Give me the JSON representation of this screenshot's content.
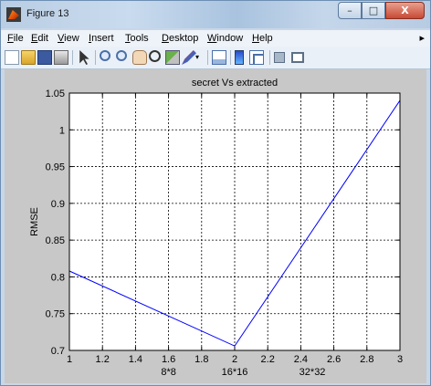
{
  "window": {
    "title": "Figure 13",
    "buttons": {
      "minimize": "–",
      "maximize": "□",
      "close": "X"
    }
  },
  "menubar": {
    "items": [
      {
        "label": "File",
        "underline": "F",
        "rest": "ile"
      },
      {
        "label": "Edit",
        "underline": "E",
        "rest": "dit"
      },
      {
        "label": "View",
        "underline": "V",
        "rest": "iew"
      },
      {
        "label": "Insert",
        "underline": "I",
        "rest": "nsert"
      },
      {
        "label": "Tools",
        "underline": "T",
        "rest": "ools"
      },
      {
        "label": "Desktop",
        "underline": "D",
        "rest": "esktop"
      },
      {
        "label": "Window",
        "underline": "W",
        "rest": "indow"
      },
      {
        "label": "Help",
        "underline": "H",
        "rest": "elp"
      }
    ],
    "overflow": "▸"
  },
  "toolbar": {
    "icons": [
      "new-figure-icon",
      "open-file-icon",
      "save-icon",
      "print-icon",
      "edit-plot-icon",
      "zoom-in-icon",
      "zoom-out-icon",
      "pan-icon",
      "rotate-3d-icon",
      "data-cursor-icon",
      "brush-icon",
      "link-plot-icon",
      "colorbar-icon",
      "legend-icon",
      "hide-plot-tools-icon",
      "show-plot-tools-icon"
    ]
  },
  "chart_data": {
    "type": "line",
    "title": "secret Vs extracted",
    "xlabel": "",
    "ylabel": "RMSE",
    "xlim": [
      1,
      3
    ],
    "ylim": [
      0.7,
      1.05
    ],
    "xticks": [
      1,
      1.2,
      1.4,
      1.6,
      1.8,
      2,
      2.2,
      2.4,
      2.6,
      2.8,
      3
    ],
    "xtick_labels": [
      "1",
      "1.2",
      "1.4",
      "1.6",
      "1.8",
      "2",
      "2.2",
      "2.4",
      "2.6",
      "2.8",
      "3"
    ],
    "yticks": [
      0.7,
      0.75,
      0.8,
      0.85,
      0.9,
      0.95,
      1,
      1.05
    ],
    "ytick_labels": [
      "0.7",
      "0.75",
      "0.8",
      "0.85",
      "0.9",
      "0.95",
      "1",
      "1.05"
    ],
    "grid": true,
    "annotations": [
      {
        "text": "8*8",
        "x": 1.6
      },
      {
        "text": "16*16",
        "x": 2.0
      },
      {
        "text": "32*32",
        "x": 2.47
      }
    ],
    "series": [
      {
        "x": [
          1,
          2,
          3
        ],
        "y": [
          0.808,
          0.706,
          1.04
        ],
        "color": "#0000ff"
      }
    ]
  }
}
